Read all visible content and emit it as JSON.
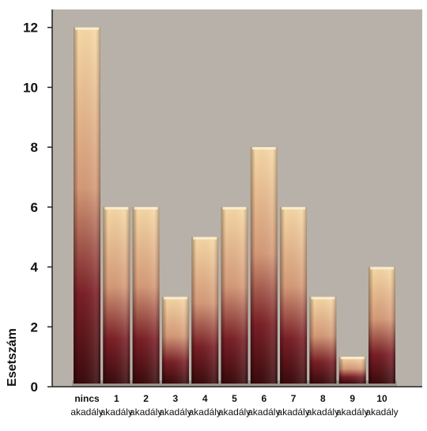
{
  "chart_data": {
    "type": "bar",
    "title": "",
    "xlabel": "",
    "ylabel": "Esetszám",
    "ylim": [
      0,
      12.6
    ],
    "yticks": [
      0,
      2,
      4,
      6,
      8,
      10,
      12
    ],
    "grid": false,
    "legend": "none",
    "categories": [
      {
        "line1": "nincs",
        "line2": "akadály"
      },
      {
        "line1": "1",
        "line2": "akadály"
      },
      {
        "line1": "2",
        "line2": "akadály"
      },
      {
        "line1": "3",
        "line2": "akadály"
      },
      {
        "line1": "4",
        "line2": "akadály"
      },
      {
        "line1": "5",
        "line2": "akadály"
      },
      {
        "line1": "6",
        "line2": "akadály"
      },
      {
        "line1": "7",
        "line2": "akadály"
      },
      {
        "line1": "8",
        "line2": "akadály"
      },
      {
        "line1": "9",
        "line2": "akadály"
      },
      {
        "line1": "10",
        "line2": "akadály"
      }
    ],
    "values": [
      12,
      6,
      6,
      3,
      5,
      6,
      8,
      6,
      3,
      1,
      4
    ],
    "colors": {
      "plot_background": "#b7b1a9",
      "bar_top": "#f7d9a6",
      "bar_bottom": "#3a0a0c",
      "axis": "#222222"
    }
  }
}
